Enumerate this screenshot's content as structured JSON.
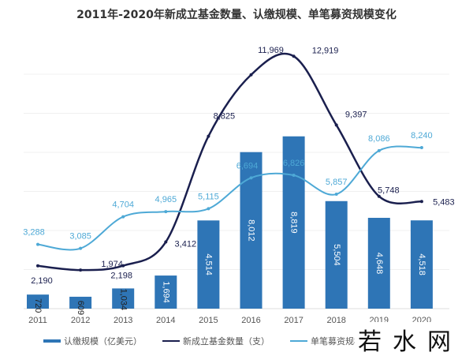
{
  "chart_data": {
    "type": "bar",
    "title": "2011年-2020年新成立基金数量、认缴规模、单笔募资规模变化",
    "categories": [
      "2011",
      "2012",
      "2013",
      "2014",
      "2015",
      "2016",
      "2017",
      "2018",
      "2019",
      "2020"
    ],
    "series": [
      {
        "name": "认缴规模（亿美元）",
        "type": "bar",
        "color": "#2e75b6",
        "values": [
          720,
          609,
          1034,
          1694,
          4514,
          8012,
          8819,
          5504,
          4648,
          4518
        ]
      },
      {
        "name": "新成立基金数量（支）",
        "type": "line",
        "color": "#1a1f4e",
        "values": [
          2190,
          1974,
          2198,
          3412,
          8825,
          11969,
          12919,
          9397,
          5748,
          5483
        ]
      },
      {
        "name": "单笔募资规模",
        "type": "line",
        "color": "#4ea9d6",
        "values": [
          3288,
          3085,
          4704,
          4965,
          5115,
          6694,
          6826,
          5857,
          8086,
          8240
        ]
      }
    ],
    "ylim": [
      0,
      13000
    ],
    "grid": true,
    "legend": "bottom"
  },
  "watermark": "若水网"
}
